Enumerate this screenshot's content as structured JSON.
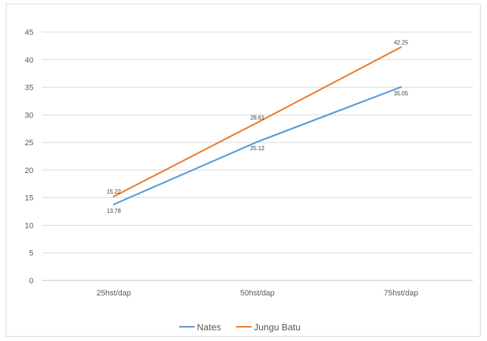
{
  "chart_data": {
    "type": "line",
    "categories": [
      "25hst/dap",
      "50hst/dap",
      "75hst/dap"
    ],
    "series": [
      {
        "name": "Nates",
        "values": [
          13.78,
          25.12,
          35.05
        ],
        "labels": [
          "13.78",
          "25.12",
          "35.05"
        ],
        "color": "#5b9bd5"
      },
      {
        "name": "Jungu Batu",
        "values": [
          15.22,
          28.61,
          42.25
        ],
        "labels": [
          "15.22",
          "28.61",
          "42.25"
        ],
        "color": "#ed7d31"
      }
    ],
    "title": "",
    "xlabel": "",
    "ylabel": "",
    "ylim": [
      0,
      45
    ],
    "yticks": [
      "0",
      "5",
      "10",
      "15",
      "20",
      "25",
      "30",
      "35",
      "40",
      "45"
    ],
    "grid": true,
    "legend": "bottom"
  }
}
